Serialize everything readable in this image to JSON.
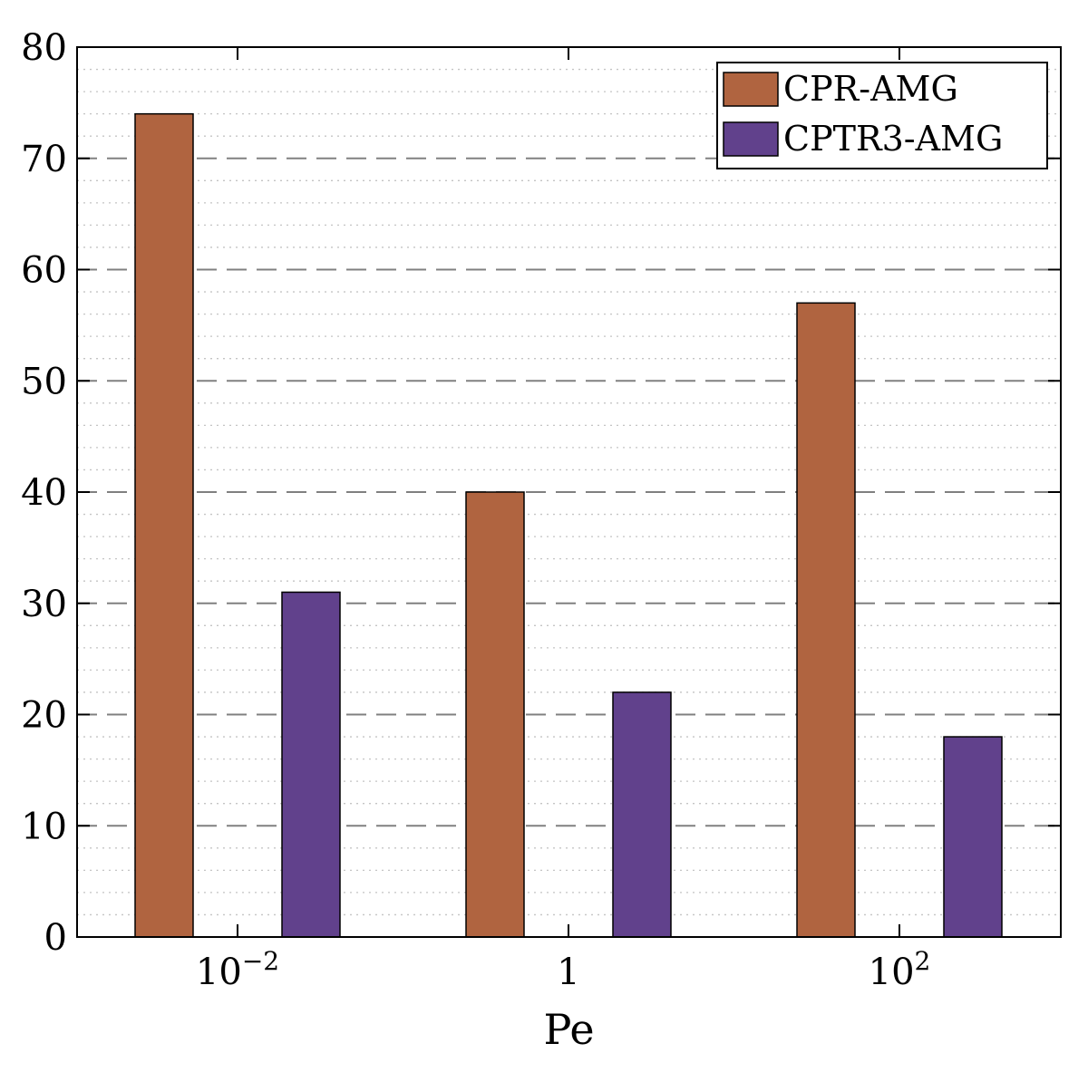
{
  "chart_data": {
    "type": "bar",
    "categories": [
      "10",
      "1",
      "10"
    ],
    "category_exponents": [
      "−2",
      "",
      "2"
    ],
    "xlabel": "Pe",
    "ylabel": "",
    "title": "",
    "ylim": [
      0,
      80
    ],
    "yticks": [
      "0",
      "10",
      "20",
      "30",
      "40",
      "50",
      "60",
      "70",
      "80"
    ],
    "grid": "major dashed, minor dotted",
    "legend_position": "top-right",
    "series": [
      {
        "name": "CPR-AMG",
        "color": "#b06440",
        "values": [
          74,
          40,
          57
        ]
      },
      {
        "name": "CPTR3-AMG",
        "color": "#61418c",
        "values": [
          31,
          22,
          18
        ]
      }
    ]
  }
}
